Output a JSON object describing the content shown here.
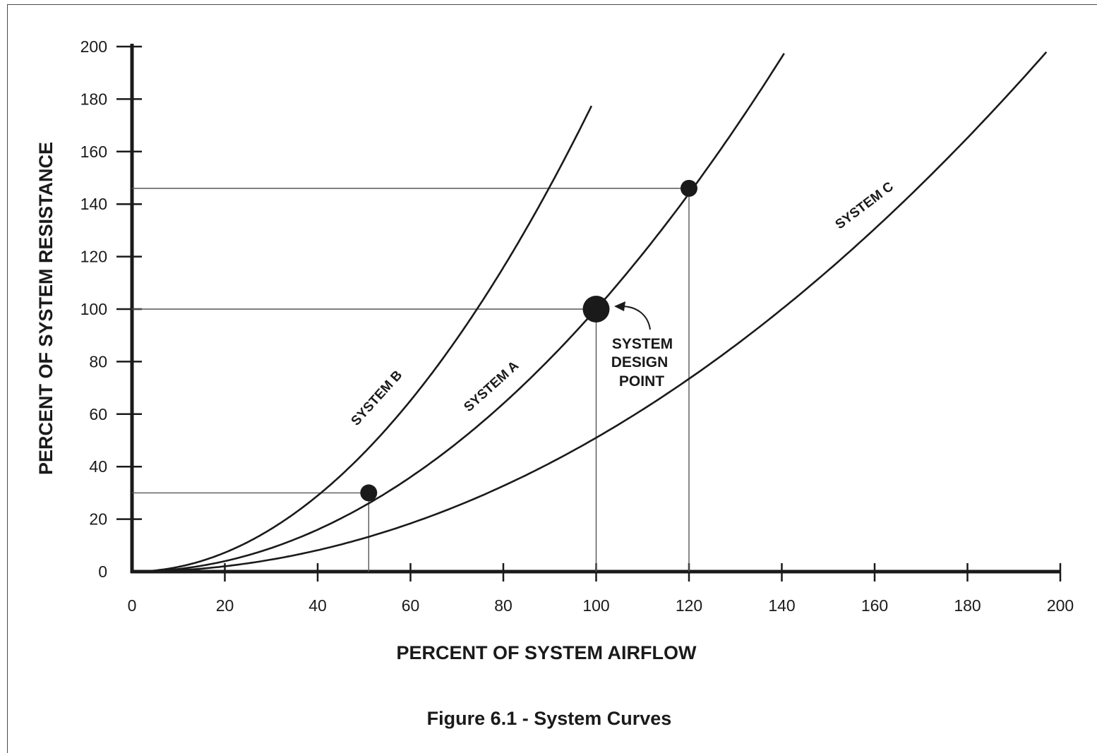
{
  "chart_data": {
    "type": "line",
    "caption": "Figure 6.1 - System Curves",
    "xlabel": "PERCENT OF SYSTEM AIRFLOW",
    "ylabel": "PERCENT OF SYSTEM RESISTANCE",
    "xlim": [
      0,
      200
    ],
    "ylim": [
      0,
      200
    ],
    "x_ticks": [
      "0",
      "20",
      "40",
      "60",
      "80",
      "100",
      "120",
      "140",
      "160",
      "180",
      "200"
    ],
    "y_ticks": [
      "0",
      "20",
      "40",
      "60",
      "80",
      "100",
      "120",
      "140",
      "160",
      "180",
      "200"
    ],
    "grid": false,
    "series": [
      {
        "name": "SYSTEM B",
        "k": 0.0181,
        "x": [
          0,
          10,
          20,
          30,
          40,
          50,
          60,
          70,
          80,
          90,
          99
        ],
        "y": [
          0,
          1.8,
          7.2,
          16.3,
          29.0,
          45.3,
          65.2,
          88.7,
          115.8,
          146.6,
          177.4
        ]
      },
      {
        "name": "SYSTEM A",
        "k": 0.01,
        "x": [
          0,
          20,
          40,
          51,
          60,
          80,
          100,
          120,
          140,
          140.5
        ],
        "y": [
          0,
          4,
          16,
          30,
          36,
          64,
          100,
          146,
          196,
          205
        ]
      },
      {
        "name": "SYSTEM C",
        "k": 0.0051,
        "x": [
          0,
          20,
          40,
          60,
          80,
          100,
          120,
          140,
          160,
          180,
          197
        ],
        "y": [
          0,
          2.0,
          8.2,
          18.4,
          32.6,
          51.0,
          73.4,
          100.0,
          130.6,
          165.2,
          197.9
        ]
      }
    ],
    "points": [
      {
        "x": 51,
        "y": 30
      },
      {
        "x": 100,
        "y": 100
      },
      {
        "x": 120,
        "y": 146
      }
    ],
    "annotation": {
      "lines": [
        "SYSTEM",
        "DESIGN",
        "POINT"
      ],
      "points_to": {
        "x": 100,
        "y": 100
      }
    }
  }
}
